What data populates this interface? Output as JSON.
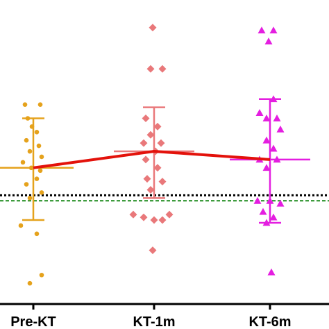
{
  "chart_data": {
    "type": "scatter",
    "title": "",
    "xlabel": "",
    "ylabel": "",
    "categories": [
      "Pre-KT",
      "KT-1m",
      "KT-6m"
    ],
    "ylim": [
      0.5,
      10.6
    ],
    "grid": false,
    "legend": "none",
    "series": [
      {
        "category": "Pre-KT",
        "color": "#e5a21c",
        "marker": "circle",
        "mean": 5.0,
        "sd_upper": 6.8,
        "sd_lower": 3.1,
        "points": [
          {
            "dx": -0.12,
            "y": 7.3
          },
          {
            "dx": 0.1,
            "y": 7.3
          },
          {
            "dx": -0.08,
            "y": 6.8
          },
          {
            "dx": -0.02,
            "y": 6.5
          },
          {
            "dx": 0.05,
            "y": 6.3
          },
          {
            "dx": -0.1,
            "y": 6.0
          },
          {
            "dx": 0.08,
            "y": 5.8
          },
          {
            "dx": -0.05,
            "y": 5.6
          },
          {
            "dx": 0.12,
            "y": 5.4
          },
          {
            "dx": -0.15,
            "y": 5.2
          },
          {
            "dx": -0.03,
            "y": 5.0
          },
          {
            "dx": 0.1,
            "y": 4.9
          },
          {
            "dx": 0.05,
            "y": 4.6
          },
          {
            "dx": -0.1,
            "y": 4.4
          },
          {
            "dx": 0.12,
            "y": 4.1
          },
          {
            "dx": -0.05,
            "y": 3.9
          },
          {
            "dx": -0.18,
            "y": 2.9
          },
          {
            "dx": 0.05,
            "y": 2.6
          },
          {
            "dx": 0.12,
            "y": 1.1
          },
          {
            "dx": -0.05,
            "y": 0.8
          }
        ]
      },
      {
        "category": "KT-1m",
        "color": "#e9787a",
        "marker": "diamond",
        "mean": 5.6,
        "sd_upper": 7.2,
        "sd_lower": 3.9,
        "points": [
          {
            "dx": -0.02,
            "y": 10.1
          },
          {
            "dx": -0.05,
            "y": 8.6
          },
          {
            "dx": 0.12,
            "y": 8.6
          },
          {
            "dx": -0.12,
            "y": 6.8
          },
          {
            "dx": 0.05,
            "y": 6.5
          },
          {
            "dx": -0.05,
            "y": 6.2
          },
          {
            "dx": -0.15,
            "y": 5.9
          },
          {
            "dx": 0.1,
            "y": 5.9
          },
          {
            "dx": 0.02,
            "y": 5.6
          },
          {
            "dx": -0.12,
            "y": 5.3
          },
          {
            "dx": 0.05,
            "y": 5.0
          },
          {
            "dx": -0.1,
            "y": 4.6
          },
          {
            "dx": 0.12,
            "y": 4.5
          },
          {
            "dx": -0.05,
            "y": 4.2
          },
          {
            "dx": -0.3,
            "y": 3.3
          },
          {
            "dx": -0.15,
            "y": 3.2
          },
          {
            "dx": 0.0,
            "y": 3.1
          },
          {
            "dx": 0.12,
            "y": 3.1
          },
          {
            "dx": 0.22,
            "y": 3.3
          },
          {
            "dx": -0.02,
            "y": 2.0
          }
        ]
      },
      {
        "category": "KT-6m",
        "color": "#e41ee0",
        "marker": "triangle",
        "mean": 5.3,
        "sd_upper": 7.5,
        "sd_lower": 3.0,
        "points": [
          {
            "dx": -0.12,
            "y": 10.0
          },
          {
            "dx": 0.05,
            "y": 10.0
          },
          {
            "dx": -0.02,
            "y": 9.6
          },
          {
            "dx": 0.05,
            "y": 7.5
          },
          {
            "dx": -0.15,
            "y": 7.0
          },
          {
            "dx": -0.05,
            "y": 6.8
          },
          {
            "dx": 0.1,
            "y": 6.8
          },
          {
            "dx": 0.15,
            "y": 6.4
          },
          {
            "dx": -0.05,
            "y": 6.0
          },
          {
            "dx": 0.05,
            "y": 5.7
          },
          {
            "dx": -0.15,
            "y": 5.3
          },
          {
            "dx": 0.1,
            "y": 5.3
          },
          {
            "dx": -0.05,
            "y": 5.0
          },
          {
            "dx": -0.18,
            "y": 3.8
          },
          {
            "dx": 0.0,
            "y": 3.8
          },
          {
            "dx": 0.15,
            "y": 3.7
          },
          {
            "dx": -0.1,
            "y": 3.4
          },
          {
            "dx": 0.05,
            "y": 3.2
          },
          {
            "dx": -0.05,
            "y": 3.0
          },
          {
            "dx": 0.02,
            "y": 1.2
          }
        ]
      }
    ],
    "mean_line": {
      "color": "#e3120b",
      "values": [
        5.0,
        5.6,
        5.3
      ]
    },
    "reference_lines": [
      {
        "y": 4.0,
        "color": "#000000",
        "style": "dotted"
      },
      {
        "y": 3.8,
        "color": "#1a8a1a",
        "style": "dashed"
      }
    ],
    "axis_color": "#000000"
  }
}
